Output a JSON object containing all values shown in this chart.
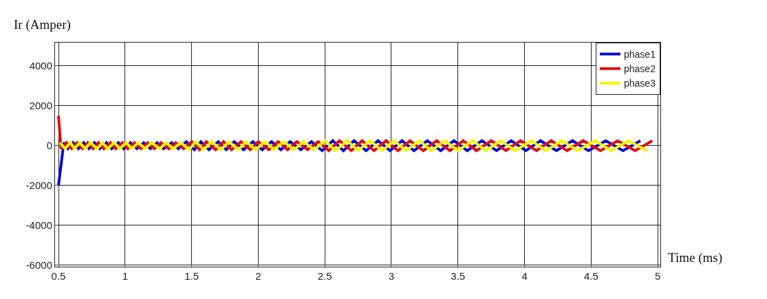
{
  "chart_data": {
    "type": "line",
    "xlabel": "Time (ms)",
    "ylabel": "Ir (Amper)",
    "xlim": [
      0.474,
      5.02
    ],
    "ylim": [
      -6070,
      5170
    ],
    "xticks": [
      0.5,
      1,
      1.5,
      2,
      2.5,
      3,
      3.5,
      4,
      4.5,
      5
    ],
    "yticks": [
      -6000,
      -4000,
      -2000,
      0,
      2000,
      4000
    ],
    "grid": true,
    "legend": "top right",
    "marker": "none",
    "line_style": "solid",
    "series": [
      {
        "name": "phase1",
        "color": "#0a0ad2",
        "x": [
          0.5,
          0.54,
          0.57,
          0.61,
          0.65,
          0.69,
          0.73,
          0.77,
          0.81,
          0.86,
          0.9,
          0.95,
          0.99,
          1.04,
          1.09,
          1.14,
          1.19,
          1.24,
          1.29,
          1.35,
          1.4,
          1.46,
          1.52,
          1.57,
          1.63,
          1.7,
          1.76,
          1.82,
          1.89,
          1.96,
          2.03,
          2.1,
          2.17,
          2.24,
          2.32,
          2.4,
          2.48,
          2.56,
          2.64,
          2.72,
          2.81,
          2.9,
          2.99,
          3.08,
          3.17,
          3.27,
          3.37,
          3.47,
          3.57,
          3.68,
          3.79,
          3.9,
          4.01,
          4.12,
          4.24,
          4.36,
          4.48,
          4.61,
          4.74,
          4.87
        ],
        "values": [
          -2000,
          150,
          -150,
          150,
          -150,
          150,
          -150,
          150,
          -150,
          150,
          -150,
          150,
          -150,
          150,
          -150,
          150,
          -150,
          150,
          -150,
          150,
          -150,
          200,
          -200,
          200,
          -200,
          200,
          -200,
          200,
          -200,
          200,
          -200,
          200,
          -200,
          200,
          -200,
          200,
          -250,
          250,
          -250,
          250,
          -250,
          250,
          -250,
          250,
          -250,
          250,
          -250,
          250,
          -250,
          250,
          -250,
          250,
          -250,
          250,
          -250,
          250,
          -250,
          250,
          -250,
          250
        ]
      },
      {
        "name": "phase2",
        "color": "#e01010",
        "x": [
          0.5,
          0.52,
          0.56,
          0.6,
          0.64,
          0.68,
          0.72,
          0.76,
          0.8,
          0.84,
          0.89,
          0.93,
          0.98,
          1.02,
          1.07,
          1.12,
          1.17,
          1.22,
          1.27,
          1.33,
          1.38,
          1.44,
          1.5,
          1.56,
          1.61,
          1.68,
          1.74,
          1.8,
          1.87,
          1.94,
          2.0,
          2.08,
          2.15,
          2.22,
          2.29,
          2.37,
          2.45,
          2.53,
          2.61,
          2.7,
          2.78,
          2.87,
          2.96,
          3.05,
          3.14,
          3.24,
          3.34,
          3.44,
          3.54,
          3.64,
          3.75,
          3.86,
          3.97,
          4.09,
          4.2,
          4.32,
          4.44,
          4.57,
          4.7,
          4.83,
          4.96
        ],
        "values": [
          1500,
          -150,
          150,
          -150,
          150,
          -150,
          150,
          -150,
          150,
          -150,
          150,
          -150,
          150,
          -150,
          150,
          -150,
          150,
          -150,
          150,
          -150,
          150,
          -150,
          200,
          -200,
          200,
          -200,
          200,
          -200,
          200,
          -200,
          200,
          -200,
          200,
          -200,
          200,
          -200,
          200,
          -250,
          250,
          -250,
          250,
          -250,
          250,
          -250,
          250,
          -250,
          250,
          -250,
          250,
          -250,
          250,
          -250,
          250,
          -250,
          250,
          -250,
          250,
          -250,
          250,
          -250,
          250
        ]
      },
      {
        "name": "phase3",
        "color": "#f5f500",
        "x": [
          0.51,
          0.55,
          0.59,
          0.62,
          0.66,
          0.7,
          0.74,
          0.79,
          0.83,
          0.87,
          0.92,
          0.96,
          1.01,
          1.05,
          1.1,
          1.15,
          1.2,
          1.26,
          1.31,
          1.36,
          1.42,
          1.48,
          1.53,
          1.59,
          1.65,
          1.72,
          1.78,
          1.85,
          1.91,
          1.98,
          2.05,
          2.12,
          2.19,
          2.27,
          2.34,
          2.42,
          2.5,
          2.58,
          2.67,
          2.75,
          2.84,
          2.93,
          3.02,
          3.11,
          3.21,
          3.3,
          3.4,
          3.5,
          3.61,
          3.71,
          3.82,
          3.93,
          4.05,
          4.16,
          4.28,
          4.4,
          4.53,
          4.65,
          4.78,
          4.92
        ],
        "values": [
          150,
          -150,
          150,
          -150,
          150,
          -150,
          150,
          -150,
          150,
          -150,
          150,
          -150,
          150,
          -150,
          150,
          -150,
          150,
          -150,
          150,
          -150,
          150,
          -200,
          200,
          -200,
          200,
          -200,
          200,
          -200,
          200,
          -200,
          200,
          -200,
          200,
          -200,
          200,
          -200,
          250,
          -250,
          250,
          -250,
          250,
          -250,
          250,
          -250,
          250,
          -250,
          250,
          -250,
          250,
          -250,
          250,
          -250,
          250,
          -250,
          250,
          -250,
          250,
          -250,
          250,
          -250
        ]
      }
    ]
  }
}
